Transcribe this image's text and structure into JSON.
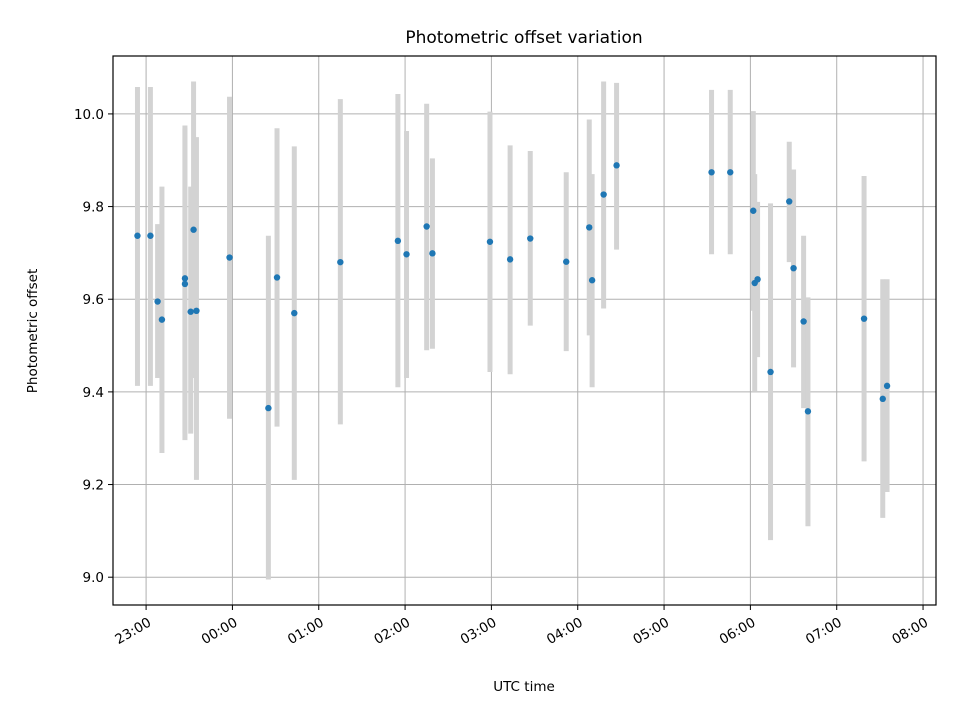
{
  "chart_data": {
    "type": "scatter",
    "title": "Photometric offset variation",
    "xlabel": "UTC time",
    "ylabel": "Photometric offset",
    "x_ticks": [
      "23:00",
      "00:00",
      "01:00",
      "02:00",
      "03:00",
      "04:00",
      "05:00",
      "06:00",
      "07:00",
      "08:00"
    ],
    "y_ticks": [
      "9.0",
      "9.2",
      "9.4",
      "9.6",
      "9.8",
      "10.0"
    ],
    "xlim": [
      "22:37",
      "08:09"
    ],
    "ylim": [
      8.94,
      10.125
    ],
    "grid": true,
    "marker_color": "#1f77b4",
    "errorbar_color": "#d3d3d3",
    "points": [
      {
        "x": "22:54",
        "y": 9.737,
        "err_low": 9.413,
        "err_high": 10.058
      },
      {
        "x": "23:03",
        "y": 9.737,
        "err_low": 9.413,
        "err_high": 10.058
      },
      {
        "x": "23:08",
        "y": 9.595,
        "err_low": 9.43,
        "err_high": 9.762
      },
      {
        "x": "23:11",
        "y": 9.556,
        "err_low": 9.268,
        "err_high": 9.843
      },
      {
        "x": "23:27",
        "y": 9.645,
        "err_low": 9.31,
        "err_high": 9.975
      },
      {
        "x": "23:27",
        "y": 9.633,
        "err_low": 9.296,
        "err_high": 9.969
      },
      {
        "x": "23:31",
        "y": 9.573,
        "err_low": 9.31,
        "err_high": 9.843
      },
      {
        "x": "23:33",
        "y": 9.75,
        "err_low": 9.43,
        "err_high": 10.07
      },
      {
        "x": "23:35",
        "y": 9.575,
        "err_low": 9.21,
        "err_high": 9.95
      },
      {
        "x": "23:58",
        "y": 9.69,
        "err_low": 9.342,
        "err_high": 10.037
      },
      {
        "x": "00:25",
        "y": 9.365,
        "err_low": 8.995,
        "err_high": 9.737
      },
      {
        "x": "00:31",
        "y": 9.647,
        "err_low": 9.325,
        "err_high": 9.969
      },
      {
        "x": "00:43",
        "y": 9.57,
        "err_low": 9.21,
        "err_high": 9.93
      },
      {
        "x": "01:15",
        "y": 9.68,
        "err_low": 9.33,
        "err_high": 10.032
      },
      {
        "x": "01:55",
        "y": 9.726,
        "err_low": 9.41,
        "err_high": 10.043
      },
      {
        "x": "02:01",
        "y": 9.697,
        "err_low": 9.43,
        "err_high": 9.963
      },
      {
        "x": "02:15",
        "y": 9.757,
        "err_low": 9.49,
        "err_high": 10.022
      },
      {
        "x": "02:19",
        "y": 9.699,
        "err_low": 9.493,
        "err_high": 9.904
      },
      {
        "x": "02:59",
        "y": 9.724,
        "err_low": 9.443,
        "err_high": 10.005
      },
      {
        "x": "03:13",
        "y": 9.686,
        "err_low": 9.438,
        "err_high": 9.932
      },
      {
        "x": "03:27",
        "y": 9.731,
        "err_low": 9.543,
        "err_high": 9.92
      },
      {
        "x": "03:52",
        "y": 9.681,
        "err_low": 9.488,
        "err_high": 9.874
      },
      {
        "x": "04:08",
        "y": 9.755,
        "err_low": 9.522,
        "err_high": 9.988
      },
      {
        "x": "04:10",
        "y": 9.641,
        "err_low": 9.41,
        "err_high": 9.87
      },
      {
        "x": "04:18",
        "y": 9.826,
        "err_low": 9.58,
        "err_high": 10.07
      },
      {
        "x": "04:27",
        "y": 9.889,
        "err_low": 9.707,
        "err_high": 10.067
      },
      {
        "x": "05:33",
        "y": 9.874,
        "err_low": 9.697,
        "err_high": 10.052
      },
      {
        "x": "05:46",
        "y": 9.874,
        "err_low": 9.697,
        "err_high": 10.052
      },
      {
        "x": "06:02",
        "y": 9.791,
        "err_low": 9.575,
        "err_high": 10.006
      },
      {
        "x": "06:03",
        "y": 9.635,
        "err_low": 9.4,
        "err_high": 9.87
      },
      {
        "x": "06:05",
        "y": 9.643,
        "err_low": 9.475,
        "err_high": 9.81
      },
      {
        "x": "06:14",
        "y": 9.443,
        "err_low": 9.08,
        "err_high": 9.807
      },
      {
        "x": "06:27",
        "y": 9.811,
        "err_low": 9.68,
        "err_high": 9.94
      },
      {
        "x": "06:30",
        "y": 9.667,
        "err_low": 9.453,
        "err_high": 9.88
      },
      {
        "x": "06:37",
        "y": 9.552,
        "err_low": 9.365,
        "err_high": 9.737
      },
      {
        "x": "06:40",
        "y": 9.358,
        "err_low": 9.11,
        "err_high": 9.604
      },
      {
        "x": "07:19",
        "y": 9.558,
        "err_low": 9.25,
        "err_high": 9.866
      },
      {
        "x": "07:32",
        "y": 9.385,
        "err_low": 9.128,
        "err_high": 9.643
      },
      {
        "x": "07:35",
        "y": 9.413,
        "err_low": 9.184,
        "err_high": 9.643
      }
    ]
  }
}
